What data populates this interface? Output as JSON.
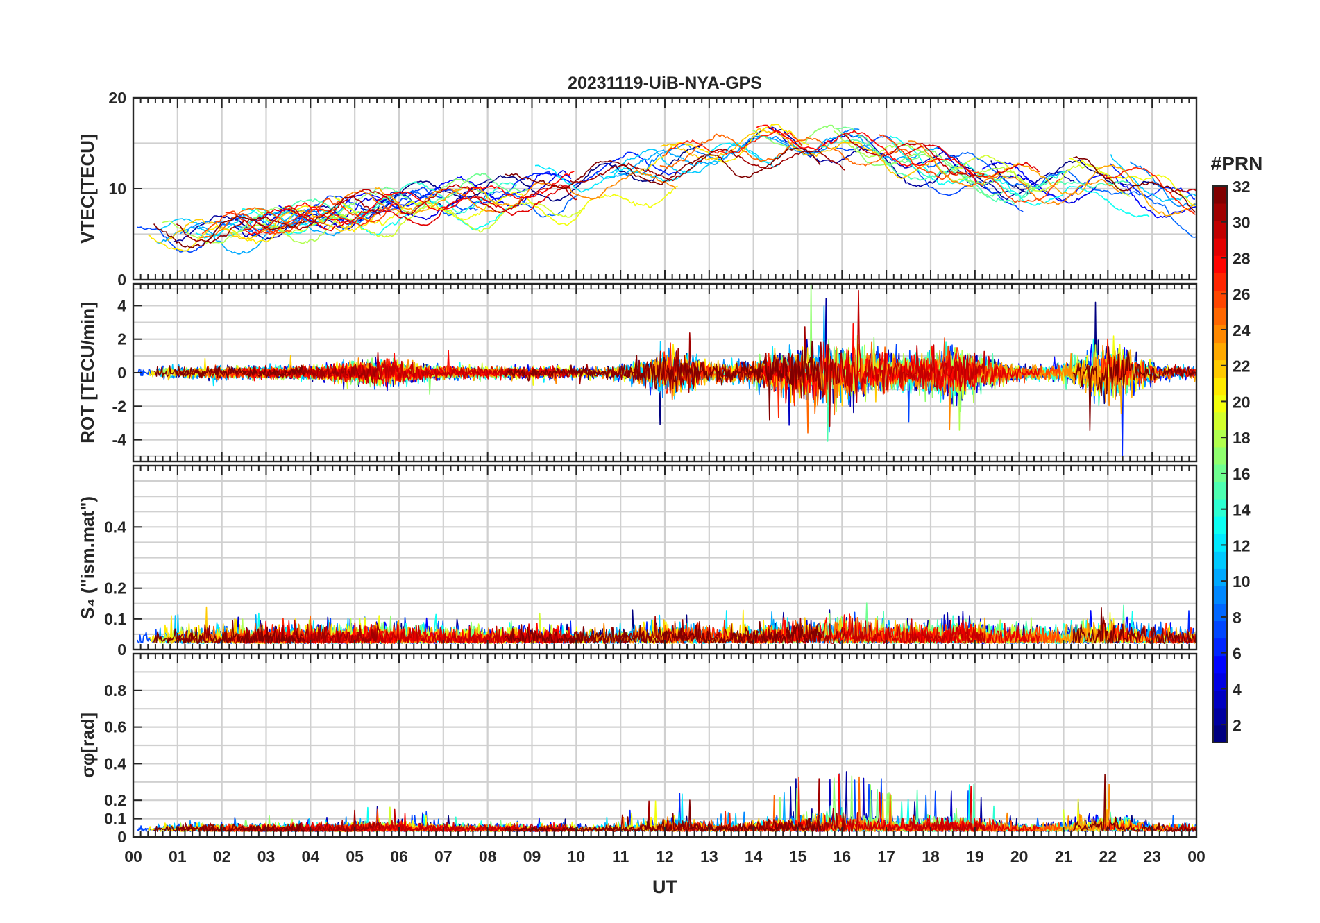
{
  "figure_title": "20231119-UiB-NYA-GPS",
  "chart_data": [
    {
      "type": "line",
      "id": "vtec",
      "ylabel": "VTEC[TECU]",
      "ylim": [
        0,
        20
      ],
      "yticks": [
        0,
        10,
        20
      ],
      "grid": true,
      "series_kind": "vtec"
    },
    {
      "type": "line",
      "id": "rot",
      "ylabel": "ROT [TECU/min]",
      "ylim": [
        -5.3,
        5.3
      ],
      "yticks": [
        -4,
        -2,
        0,
        2,
        4
      ],
      "grid": true,
      "series_kind": "rot"
    },
    {
      "type": "line",
      "id": "s4",
      "ylabel": "S₄ (\"ism.mat\")",
      "ylim": [
        0,
        0.6
      ],
      "yticks": [
        0,
        0.1,
        0.2,
        0.4
      ],
      "grid": true,
      "series_kind": "s4"
    },
    {
      "type": "line",
      "id": "sigma",
      "ylabel": "σφ[rad]",
      "ylim": [
        0,
        1.0
      ],
      "yticks": [
        0,
        0.1,
        0.2,
        0.4,
        0.6,
        0.8
      ],
      "grid": true,
      "series_kind": "sigma"
    }
  ],
  "x_axis": {
    "label": "UT",
    "range_hours": [
      0,
      24
    ],
    "tick_labels": [
      "00",
      "01",
      "02",
      "03",
      "04",
      "05",
      "06",
      "07",
      "08",
      "09",
      "10",
      "11",
      "12",
      "13",
      "14",
      "15",
      "16",
      "17",
      "18",
      "19",
      "20",
      "21",
      "22",
      "23",
      "00"
    ]
  },
  "colorbar": {
    "title": "#PRN",
    "range": [
      1,
      32
    ],
    "tick_labels": [
      "2",
      "4",
      "6",
      "8",
      "10",
      "12",
      "14",
      "16",
      "18",
      "20",
      "22",
      "24",
      "26",
      "28",
      "30",
      "32"
    ],
    "colormap": "jet"
  }
}
